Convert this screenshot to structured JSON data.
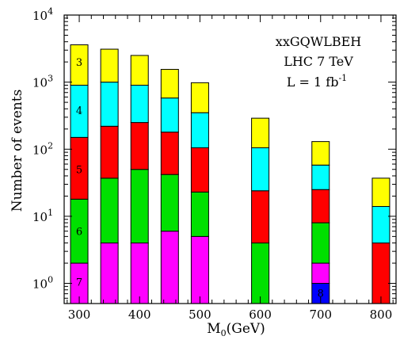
{
  "chart_data": {
    "type": "bar",
    "stacked": true,
    "log_y": true,
    "xlabel": "M",
    "xlabel_sub": "0",
    "xlabel_suffix": "(GeV)",
    "ylabel": "Number of events",
    "xlim": [
      275,
      825
    ],
    "ylim": [
      0.5,
      10000
    ],
    "x_ticks": [
      300,
      400,
      500,
      600,
      700,
      800
    ],
    "y_ticks": [
      {
        "value": 1,
        "base": "10",
        "exp": "0"
      },
      {
        "value": 10,
        "base": "10",
        "exp": "1"
      },
      {
        "value": 100,
        "base": "10",
        "exp": "2"
      },
      {
        "value": 1000,
        "base": "10",
        "exp": "3"
      },
      {
        "value": 10000,
        "base": "10",
        "exp": "4"
      }
    ],
    "grid": false,
    "bar_width": 22,
    "colors": {
      "3": "#ffff00",
      "4": "#00ffff",
      "5": "#ff0000",
      "6": "#00e000",
      "7": "#ff00ff",
      "8": "#0000ff"
    },
    "bars": [
      {
        "x": 300,
        "segments": [
          {
            "label": "7",
            "bottom": 0.5,
            "top": 2
          },
          {
            "label": "6",
            "bottom": 2,
            "top": 18
          },
          {
            "label": "5",
            "bottom": 18,
            "top": 150
          },
          {
            "label": "4",
            "bottom": 150,
            "top": 900
          },
          {
            "label": "3",
            "bottom": 900,
            "top": 3600
          }
        ]
      },
      {
        "x": 350,
        "segments": [
          {
            "label": "7",
            "bottom": 0.5,
            "top": 4
          },
          {
            "label": "6",
            "bottom": 4,
            "top": 37
          },
          {
            "label": "5",
            "bottom": 37,
            "top": 220
          },
          {
            "label": "4",
            "bottom": 220,
            "top": 1000
          },
          {
            "label": "3",
            "bottom": 1000,
            "top": 3100
          }
        ]
      },
      {
        "x": 400,
        "segments": [
          {
            "label": "7",
            "bottom": 0.5,
            "top": 4
          },
          {
            "label": "6",
            "bottom": 4,
            "top": 50
          },
          {
            "label": "5",
            "bottom": 50,
            "top": 250
          },
          {
            "label": "4",
            "bottom": 250,
            "top": 900
          },
          {
            "label": "3",
            "bottom": 900,
            "top": 2500
          }
        ]
      },
      {
        "x": 450,
        "segments": [
          {
            "label": "7",
            "bottom": 0.5,
            "top": 6
          },
          {
            "label": "6",
            "bottom": 6,
            "top": 42
          },
          {
            "label": "5",
            "bottom": 42,
            "top": 180
          },
          {
            "label": "4",
            "bottom": 180,
            "top": 580
          },
          {
            "label": "3",
            "bottom": 580,
            "top": 1550
          }
        ]
      },
      {
        "x": 500,
        "segments": [
          {
            "label": "7",
            "bottom": 0.5,
            "top": 5
          },
          {
            "label": "6",
            "bottom": 5,
            "top": 23
          },
          {
            "label": "5",
            "bottom": 23,
            "top": 105
          },
          {
            "label": "4",
            "bottom": 105,
            "top": 350
          },
          {
            "label": "3",
            "bottom": 350,
            "top": 980
          }
        ]
      },
      {
        "x": 600,
        "segments": [
          {
            "label": "6",
            "bottom": 0.5,
            "top": 4
          },
          {
            "label": "5",
            "bottom": 4,
            "top": 24
          },
          {
            "label": "4",
            "bottom": 24,
            "top": 105
          },
          {
            "label": "3",
            "bottom": 105,
            "top": 290
          }
        ]
      },
      {
        "x": 700,
        "segments": [
          {
            "label": "8",
            "bottom": 0.5,
            "top": 1
          },
          {
            "label": "7",
            "bottom": 1,
            "top": 2
          },
          {
            "label": "6",
            "bottom": 2,
            "top": 8
          },
          {
            "label": "5",
            "bottom": 8,
            "top": 25
          },
          {
            "label": "4",
            "bottom": 25,
            "top": 58
          },
          {
            "label": "3",
            "bottom": 58,
            "top": 130
          }
        ]
      },
      {
        "x": 800,
        "segments": [
          {
            "label": "5",
            "bottom": 0.5,
            "top": 4
          },
          {
            "label": "4",
            "bottom": 4,
            "top": 14
          },
          {
            "label": "3",
            "bottom": 14,
            "top": 37
          }
        ]
      }
    ],
    "segment_labels": [
      {
        "text": "3",
        "x": 300,
        "y": 2000
      },
      {
        "text": "4",
        "x": 300,
        "y": 380
      },
      {
        "text": "5",
        "x": 300,
        "y": 50
      },
      {
        "text": "6",
        "x": 300,
        "y": 6
      },
      {
        "text": "7",
        "x": 300,
        "y": 1.05
      },
      {
        "text": "8",
        "x": 700,
        "y": 0.72
      }
    ],
    "annotations": {
      "line1": "xxGQWLBEH",
      "line2": "LHC 7 TeV",
      "line3_prefix": "L = 1 fb",
      "line3_sup": "-1"
    }
  }
}
